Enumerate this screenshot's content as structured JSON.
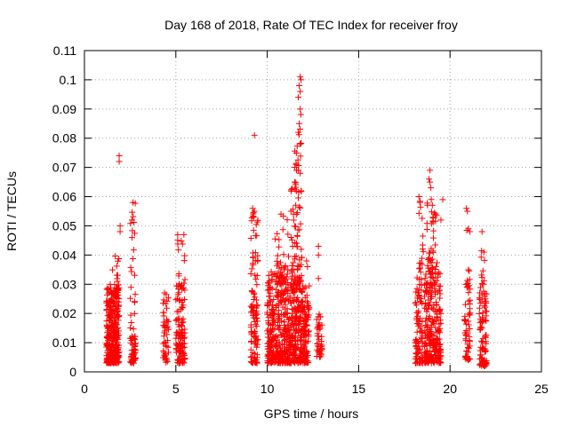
{
  "chart_data": {
    "type": "scatter",
    "title": "Day 168 of 2018, Rate Of TEC Index for receiver froy",
    "xlabel": "GPS time / hours",
    "ylabel": "ROTI / TECUs",
    "xlim": [
      0,
      25
    ],
    "ylim": [
      0,
      0.11
    ],
    "xticks": [
      0,
      5,
      10,
      15,
      20,
      25
    ],
    "yticks": [
      0,
      0.01,
      0.02,
      0.03,
      0.04,
      0.05,
      0.06,
      0.07,
      0.08,
      0.09,
      0.1,
      0.11
    ],
    "xtick_labels": [
      "0",
      "5",
      "10",
      "15",
      "20",
      "25"
    ],
    "ytick_labels": [
      "0",
      "0.01",
      "0.02",
      "0.03",
      "0.04",
      "0.05",
      "0.06",
      "0.07",
      "0.08",
      "0.09",
      "0.1",
      "0.11"
    ],
    "grid": true,
    "marker": "+",
    "color": "#ff0000",
    "clusters": [
      {
        "x_range": [
          1.2,
          1.9
        ],
        "y_range": [
          0.003,
          0.03
        ],
        "count": 320
      },
      {
        "x_range": [
          1.5,
          1.9
        ],
        "y_range": [
          0.025,
          0.04
        ],
        "count": 18
      },
      {
        "x_range": [
          2.5,
          2.8
        ],
        "y_range": [
          0.003,
          0.012
        ],
        "count": 50
      },
      {
        "x_range": [
          2.5,
          2.8
        ],
        "y_range": [
          0.012,
          0.058
        ],
        "count": 25
      },
      {
        "x_range": [
          4.3,
          4.6
        ],
        "y_range": [
          0.003,
          0.028
        ],
        "count": 50
      },
      {
        "x_range": [
          5.0,
          5.5
        ],
        "y_range": [
          0.003,
          0.03
        ],
        "count": 110
      },
      {
        "x_range": [
          5.1,
          5.5
        ],
        "y_range": [
          0.03,
          0.047
        ],
        "count": 12
      },
      {
        "x_range": [
          9.1,
          9.5
        ],
        "y_range": [
          0.003,
          0.055
        ],
        "count": 110
      },
      {
        "x_range": [
          10.0,
          11.0
        ],
        "y_range": [
          0.003,
          0.035
        ],
        "count": 280
      },
      {
        "x_range": [
          10.4,
          11.2
        ],
        "y_range": [
          0.03,
          0.054
        ],
        "count": 30
      },
      {
        "x_range": [
          11.0,
          12.3
        ],
        "y_range": [
          0.003,
          0.03
        ],
        "count": 360
      },
      {
        "x_range": [
          11.3,
          11.9
        ],
        "y_range": [
          0.03,
          0.07
        ],
        "count": 70
      },
      {
        "x_range": [
          11.5,
          11.9
        ],
        "y_range": [
          0.07,
          0.09
        ],
        "count": 14
      },
      {
        "x_range": [
          12.7,
          13.0
        ],
        "y_range": [
          0.005,
          0.02
        ],
        "count": 40
      },
      {
        "x_range": [
          18.1,
          18.5
        ],
        "y_range": [
          0.003,
          0.035
        ],
        "count": 90
      },
      {
        "x_range": [
          18.3,
          18.6
        ],
        "y_range": [
          0.035,
          0.06
        ],
        "count": 14
      },
      {
        "x_range": [
          18.6,
          19.5
        ],
        "y_range": [
          0.003,
          0.035
        ],
        "count": 260
      },
      {
        "x_range": [
          18.7,
          19.3
        ],
        "y_range": [
          0.035,
          0.06
        ],
        "count": 40
      },
      {
        "x_range": [
          20.8,
          21.1
        ],
        "y_range": [
          0.004,
          0.03
        ],
        "count": 55
      },
      {
        "x_range": [
          20.9,
          21.1
        ],
        "y_range": [
          0.03,
          0.055
        ],
        "count": 8
      },
      {
        "x_range": [
          21.6,
          22.0
        ],
        "y_range": [
          0.002,
          0.03
        ],
        "count": 90
      },
      {
        "x_range": [
          21.7,
          21.9
        ],
        "y_range": [
          0.03,
          0.048
        ],
        "count": 10
      }
    ],
    "outliers": [
      {
        "x": 1.9,
        "y": 0.074
      },
      {
        "x": 1.9,
        "y": 0.072
      },
      {
        "x": 1.95,
        "y": 0.05
      },
      {
        "x": 1.95,
        "y": 0.048
      },
      {
        "x": 2.65,
        "y": 0.058
      },
      {
        "x": 2.6,
        "y": 0.052
      },
      {
        "x": 2.6,
        "y": 0.046
      },
      {
        "x": 5.1,
        "y": 0.047
      },
      {
        "x": 5.1,
        "y": 0.045
      },
      {
        "x": 9.3,
        "y": 0.081
      },
      {
        "x": 9.2,
        "y": 0.056
      },
      {
        "x": 9.3,
        "y": 0.055
      },
      {
        "x": 10.75,
        "y": 0.054
      },
      {
        "x": 11.3,
        "y": 0.055
      },
      {
        "x": 11.8,
        "y": 0.101
      },
      {
        "x": 11.85,
        "y": 0.1
      },
      {
        "x": 11.75,
        "y": 0.098
      },
      {
        "x": 11.8,
        "y": 0.096
      },
      {
        "x": 11.7,
        "y": 0.094
      },
      {
        "x": 11.8,
        "y": 0.09
      },
      {
        "x": 11.75,
        "y": 0.085
      },
      {
        "x": 11.7,
        "y": 0.082
      },
      {
        "x": 11.8,
        "y": 0.078
      },
      {
        "x": 11.6,
        "y": 0.069
      },
      {
        "x": 11.7,
        "y": 0.069
      },
      {
        "x": 11.8,
        "y": 0.068
      },
      {
        "x": 11.85,
        "y": 0.062
      },
      {
        "x": 11.5,
        "y": 0.065
      },
      {
        "x": 12.2,
        "y": 0.036
      },
      {
        "x": 12.15,
        "y": 0.038
      },
      {
        "x": 12.8,
        "y": 0.043
      },
      {
        "x": 12.8,
        "y": 0.04
      },
      {
        "x": 12.8,
        "y": 0.032
      },
      {
        "x": 18.9,
        "y": 0.069
      },
      {
        "x": 18.85,
        "y": 0.066
      },
      {
        "x": 18.9,
        "y": 0.065
      },
      {
        "x": 18.95,
        "y": 0.063
      },
      {
        "x": 18.3,
        "y": 0.06
      },
      {
        "x": 18.35,
        "y": 0.058
      },
      {
        "x": 19.6,
        "y": 0.059
      },
      {
        "x": 19.5,
        "y": 0.052
      },
      {
        "x": 19.2,
        "y": 0.054
      },
      {
        "x": 20.9,
        "y": 0.056
      },
      {
        "x": 20.95,
        "y": 0.055
      },
      {
        "x": 21.0,
        "y": 0.049
      },
      {
        "x": 21.75,
        "y": 0.048
      },
      {
        "x": 21.85,
        "y": 0.041
      }
    ]
  }
}
